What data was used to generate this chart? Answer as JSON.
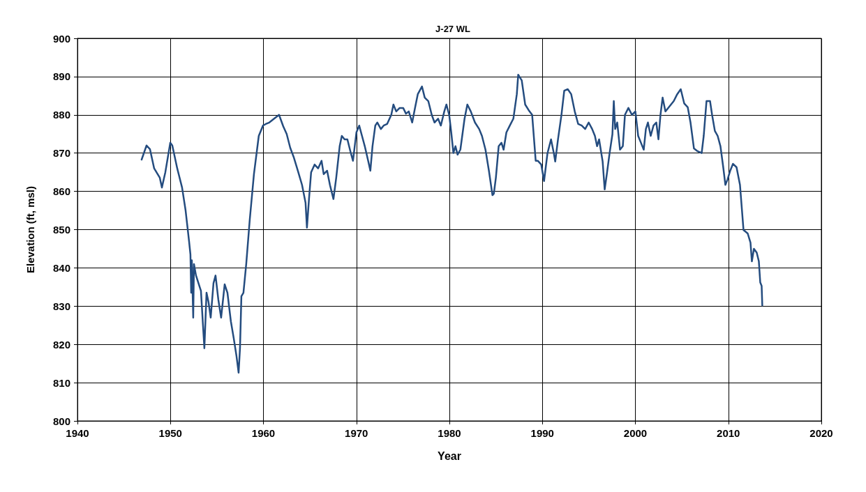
{
  "chart_data": {
    "type": "line",
    "title": "J-27 WL",
    "xlabel": "Year",
    "ylabel": "Elevation (ft, msl)",
    "xlim": [
      1940,
      2020
    ],
    "xticks": [
      1940,
      1950,
      1960,
      1970,
      1980,
      1990,
      2000,
      2010,
      2020
    ],
    "ylim": [
      800,
      900
    ],
    "yticks": [
      800,
      810,
      820,
      830,
      840,
      850,
      860,
      870,
      880,
      890,
      900
    ],
    "grid": true,
    "marker": "none",
    "line_style": "solid",
    "series": [
      {
        "color": "#244c7f",
        "x": [
          1946.9,
          1947.43,
          1947.8,
          1948.25,
          1948.85,
          1949.08,
          1949.45,
          1949.98,
          1950.2,
          1950.73,
          1951.25,
          1951.63,
          1952,
          1952.15,
          1952.23,
          1952.3,
          1952.45,
          1952.53,
          1952.75,
          1953.28,
          1953.5,
          1953.65,
          1953.88,
          1954.1,
          1954.33,
          1954.63,
          1954.85,
          1955.15,
          1955.45,
          1955.83,
          1956.13,
          1956.5,
          1956.8,
          1957.1,
          1957.33,
          1957.48,
          1957.63,
          1957.85,
          1958.15,
          1958.53,
          1958.98,
          1959.5,
          1959.95,
          1960.25,
          1960.63,
          1961.15,
          1961.68,
          1962.13,
          1962.5,
          1962.88,
          1963.25,
          1963.7,
          1964.15,
          1964.53,
          1964.68,
          1964.9,
          1965.13,
          1965.5,
          1965.88,
          1966.25,
          1966.48,
          1966.85,
          1967.15,
          1967.53,
          1967.83,
          1968.2,
          1968.43,
          1968.73,
          1969.03,
          1969.4,
          1969.63,
          1970,
          1970.3,
          1970.6,
          1970.9,
          1971.28,
          1971.5,
          1971.73,
          1972.03,
          1972.25,
          1972.63,
          1972.93,
          1973.3,
          1973.75,
          1973.98,
          1974.28,
          1974.65,
          1975.03,
          1975.33,
          1975.63,
          1976,
          1976.3,
          1976.6,
          1977.05,
          1977.35,
          1977.73,
          1978.1,
          1978.4,
          1978.78,
          1979.08,
          1979.45,
          1979.68,
          1979.98,
          1980.2,
          1980.43,
          1980.65,
          1980.88,
          1981.18,
          1981.63,
          1981.93,
          1982.3,
          1982.75,
          1983.2,
          1983.5,
          1983.88,
          1984.25,
          1984.63,
          1984.78,
          1985,
          1985.3,
          1985.6,
          1985.83,
          1986.13,
          1986.5,
          1986.88,
          1987.25,
          1987.4,
          1987.78,
          1988.15,
          1988.53,
          1988.9,
          1989.28,
          1989.5,
          1989.88,
          1990.18,
          1990.55,
          1990.93,
          1991.23,
          1991.38,
          1991.68,
          1992.05,
          1992.35,
          1992.73,
          1993.1,
          1993.48,
          1993.85,
          1994.23,
          1994.6,
          1994.98,
          1995.35,
          1995.65,
          1995.88,
          1996.1,
          1996.48,
          1996.7,
          1996.93,
          1997.23,
          1997.53,
          1997.68,
          1997.83,
          1998.05,
          1998.35,
          1998.65,
          1998.88,
          1999.25,
          1999.63,
          2000,
          2000.3,
          2000.6,
          2000.9,
          2001.13,
          2001.35,
          2001.65,
          2001.95,
          2002.25,
          2002.48,
          2002.7,
          2002.93,
          2003.23,
          2003.53,
          2003.83,
          2004.13,
          2004.5,
          2004.88,
          2005.25,
          2005.63,
          2005.93,
          2006.3,
          2006.68,
          2007.13,
          2007.35,
          2007.65,
          2008.03,
          2008.25,
          2008.55,
          2008.85,
          2009.15,
          2009.45,
          2009.68,
          2009.9,
          2010.2,
          2010.5,
          2010.88,
          2011.25,
          2011.63,
          2012.08,
          2012.38,
          2012.53,
          2012.75,
          2013.05,
          2013.28,
          2013.43,
          2013.58,
          2013.65
        ],
        "values": [
          868.3,
          872,
          871,
          866,
          863.6,
          861,
          865,
          872.7,
          872,
          866,
          861,
          855,
          847,
          843.5,
          833.5,
          842,
          827,
          841,
          838,
          834,
          825,
          819,
          833.5,
          831,
          827,
          836,
          838,
          831.7,
          827,
          835.7,
          833.5,
          826,
          821.7,
          817,
          812.6,
          819,
          832.6,
          833.5,
          841,
          852.6,
          864.5,
          874.5,
          877.2,
          877.6,
          878,
          879,
          880,
          877,
          875,
          871.4,
          869,
          865.4,
          861.7,
          857,
          850.5,
          858,
          865,
          867,
          866,
          868,
          864.5,
          865.4,
          861.7,
          858,
          863.6,
          871.8,
          874.5,
          873.6,
          873.6,
          870,
          868,
          875.4,
          877.2,
          874.5,
          871.8,
          867.8,
          865.4,
          871.8,
          877.2,
          878,
          876.3,
          877.2,
          877.6,
          880,
          882.7,
          880.9,
          881.8,
          881.8,
          880.3,
          880.9,
          878,
          881.8,
          885.4,
          887.4,
          884.5,
          883.6,
          880,
          878,
          879,
          877.2,
          880.9,
          882.7,
          880,
          875.4,
          870,
          871.8,
          869.6,
          870.9,
          879,
          882.7,
          880.9,
          878,
          876.3,
          874.5,
          870.9,
          865.4,
          859,
          859.4,
          863.6,
          871.8,
          872.7,
          870.9,
          875.4,
          877.2,
          879,
          885.4,
          890.5,
          889,
          882.7,
          881.2,
          880,
          868,
          868,
          867,
          862.7,
          870,
          873.6,
          870,
          867.8,
          873.6,
          880,
          886.3,
          886.7,
          885.4,
          880.9,
          877.6,
          877.2,
          876.3,
          878,
          876.3,
          874.5,
          871.8,
          873.6,
          867.8,
          860.5,
          864.5,
          870,
          874.9,
          883.6,
          876.3,
          878,
          870.9,
          871.8,
          880,
          881.8,
          880,
          880.9,
          874.5,
          872.7,
          870.9,
          876.3,
          878,
          874.5,
          877.2,
          878,
          873.6,
          880,
          884.5,
          880.9,
          881.8,
          882.7,
          883.6,
          885.4,
          886.7,
          883,
          882,
          878,
          871.2,
          870.5,
          870,
          874.5,
          883.6,
          883.6,
          880,
          875.8,
          874.5,
          871.8,
          866.3,
          861.7,
          863,
          865.4,
          867.2,
          866.3,
          861.7,
          849.9,
          849,
          846.6,
          841.7,
          845,
          844,
          841.7,
          836.2,
          835.3,
          830.2
        ]
      }
    ]
  }
}
